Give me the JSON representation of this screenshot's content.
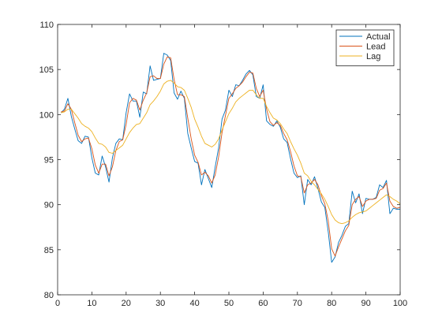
{
  "chart_data": {
    "type": "line",
    "title": "",
    "xlabel": "",
    "ylabel": "",
    "xlim": [
      0,
      100
    ],
    "ylim": [
      80,
      110
    ],
    "xticks": [
      0,
      10,
      20,
      30,
      40,
      50,
      60,
      70,
      80,
      90,
      100
    ],
    "yticks": [
      80,
      85,
      90,
      95,
      100,
      105,
      110
    ],
    "grid": false,
    "legend_position": "top-right",
    "series": [
      {
        "name": "Actual",
        "color": "#0072BD",
        "x": [
          1,
          2,
          3,
          4,
          5,
          6,
          7,
          8,
          9,
          10,
          11,
          12,
          13,
          14,
          15,
          16,
          17,
          18,
          19,
          20,
          21,
          22,
          23,
          24,
          25,
          26,
          27,
          28,
          29,
          30,
          31,
          32,
          33,
          34,
          35,
          36,
          37,
          38,
          39,
          40,
          41,
          42,
          43,
          44,
          45,
          46,
          47,
          48,
          49,
          50,
          51,
          52,
          53,
          54,
          55,
          56,
          57,
          58,
          59,
          60,
          61,
          62,
          63,
          64,
          65,
          66,
          67,
          68,
          69,
          70,
          71,
          72,
          73,
          74,
          75,
          76,
          77,
          78,
          79,
          80,
          81,
          82,
          83,
          84,
          85,
          86,
          87,
          88,
          89,
          90,
          91,
          92,
          93,
          94,
          95,
          96,
          97,
          98,
          99,
          100
        ],
        "values": [
          100.2,
          100.6,
          101.8,
          99.8,
          98.4,
          97.1,
          96.8,
          97.6,
          97.5,
          95.2,
          93.5,
          93.3,
          95.4,
          94.2,
          92.5,
          95.2,
          96.8,
          97.3,
          97.2,
          100.2,
          102.3,
          101.5,
          101.5,
          99.7,
          102.5,
          102.3,
          105.4,
          103.8,
          103.9,
          104.0,
          106.8,
          106.6,
          106.0,
          102.4,
          101.7,
          102.6,
          101.8,
          97.9,
          96.3,
          94.8,
          94.6,
          92.2,
          93.9,
          92.9,
          91.9,
          94.2,
          96.3,
          99.5,
          100.5,
          102.7,
          102.0,
          103.3,
          103.2,
          103.8,
          104.5,
          104.9,
          104.4,
          102.0,
          101.8,
          103.3,
          99.3,
          98.9,
          98.7,
          99.3,
          98.6,
          97.3,
          96.9,
          95.1,
          93.5,
          93.0,
          93.2,
          90.0,
          92.8,
          92.2,
          93.1,
          91.8,
          90.3,
          89.7,
          87.0,
          83.6,
          84.2,
          85.8,
          86.6,
          87.6,
          87.9,
          91.5,
          90.2,
          91.2,
          89.0,
          90.7,
          90.6,
          90.6,
          90.8,
          92.2,
          91.9,
          92.7,
          89.0,
          89.6,
          89.5,
          89.5
        ]
      },
      {
        "name": "Lead",
        "color": "#D95319",
        "x": [
          1,
          2,
          3,
          4,
          5,
          6,
          7,
          8,
          9,
          10,
          11,
          12,
          13,
          14,
          15,
          16,
          17,
          18,
          19,
          20,
          21,
          22,
          23,
          24,
          25,
          26,
          27,
          28,
          29,
          30,
          31,
          32,
          33,
          34,
          35,
          36,
          37,
          38,
          39,
          40,
          41,
          42,
          43,
          44,
          45,
          46,
          47,
          48,
          49,
          50,
          51,
          52,
          53,
          54,
          55,
          56,
          57,
          58,
          59,
          60,
          61,
          62,
          63,
          64,
          65,
          66,
          67,
          68,
          69,
          70,
          71,
          72,
          73,
          74,
          75,
          76,
          77,
          78,
          79,
          80,
          81,
          82,
          83,
          84,
          85,
          86,
          87,
          88,
          89,
          90,
          91,
          92,
          93,
          94,
          95,
          96,
          97,
          98,
          99,
          100
        ],
        "values": [
          100.3,
          100.4,
          101.2,
          100.6,
          99.1,
          97.7,
          97.0,
          97.3,
          97.4,
          96.2,
          94.4,
          93.5,
          94.5,
          94.5,
          93.2,
          94.2,
          96.0,
          97.0,
          97.2,
          98.9,
          101.3,
          101.8,
          101.6,
          100.5,
          101.6,
          102.4,
          104.2,
          104.3,
          104.0,
          104.0,
          105.6,
          106.4,
          106.3,
          103.9,
          102.2,
          102.2,
          102.0,
          99.6,
          97.3,
          95.5,
          94.7,
          93.3,
          93.6,
          93.2,
          92.4,
          93.3,
          95.3,
          98.0,
          99.9,
          101.8,
          102.3,
          102.9,
          103.2,
          103.6,
          104.2,
          104.7,
          104.6,
          102.9,
          102.0,
          102.7,
          100.6,
          99.2,
          98.8,
          99.1,
          98.8,
          97.9,
          97.2,
          95.9,
          94.3,
          93.2,
          93.1,
          91.3,
          92.2,
          92.4,
          92.8,
          92.2,
          91.0,
          90.1,
          88.2,
          85.1,
          84.3,
          85.3,
          86.2,
          87.1,
          87.7,
          90.0,
          90.6,
          90.9,
          89.8,
          90.4,
          90.6,
          90.6,
          90.7,
          91.6,
          91.8,
          92.4,
          90.4,
          89.8,
          89.6,
          89.7
        ]
      },
      {
        "name": "Lag",
        "color": "#EDB120",
        "x": [
          1,
          2,
          3,
          4,
          5,
          6,
          7,
          8,
          9,
          10,
          11,
          12,
          13,
          14,
          15,
          16,
          17,
          18,
          19,
          20,
          21,
          22,
          23,
          24,
          25,
          26,
          27,
          28,
          29,
          30,
          31,
          32,
          33,
          34,
          35,
          36,
          37,
          38,
          39,
          40,
          41,
          42,
          43,
          44,
          45,
          46,
          47,
          48,
          49,
          50,
          51,
          52,
          53,
          54,
          55,
          56,
          57,
          58,
          59,
          60,
          61,
          62,
          63,
          64,
          65,
          66,
          67,
          68,
          69,
          70,
          71,
          72,
          73,
          74,
          75,
          76,
          77,
          78,
          79,
          80,
          81,
          82,
          83,
          84,
          85,
          86,
          87,
          88,
          89,
          90,
          91,
          92,
          93,
          94,
          95,
          96,
          97,
          98,
          99,
          100
        ],
        "values": [
          100.2,
          100.3,
          100.6,
          100.6,
          100.1,
          99.6,
          99.0,
          98.7,
          98.5,
          98.1,
          97.4,
          96.8,
          96.7,
          96.4,
          95.8,
          95.7,
          96.0,
          96.3,
          96.6,
          97.3,
          98.0,
          98.5,
          98.9,
          99.0,
          99.6,
          100.2,
          101.1,
          101.5,
          102.0,
          102.6,
          103.4,
          103.7,
          103.8,
          103.5,
          103.1,
          103.0,
          102.7,
          101.8,
          100.8,
          99.5,
          98.6,
          97.6,
          96.8,
          96.6,
          96.4,
          96.7,
          97.3,
          98.3,
          99.2,
          100.1,
          100.7,
          101.4,
          101.8,
          102.1,
          102.4,
          102.7,
          102.7,
          102.2,
          101.8,
          101.8,
          100.9,
          100.2,
          99.6,
          99.4,
          99.0,
          98.4,
          97.9,
          97.0,
          96.2,
          95.5,
          94.6,
          93.5,
          93.2,
          92.6,
          92.2,
          91.7,
          91.2,
          90.6,
          89.8,
          88.9,
          88.3,
          88.0,
          87.9,
          88.0,
          88.2,
          88.6,
          88.9,
          89.1,
          89.2,
          89.3,
          89.6,
          89.9,
          90.2,
          90.5,
          90.8,
          91.1,
          90.9,
          90.6,
          90.4,
          90.1
        ]
      }
    ]
  }
}
